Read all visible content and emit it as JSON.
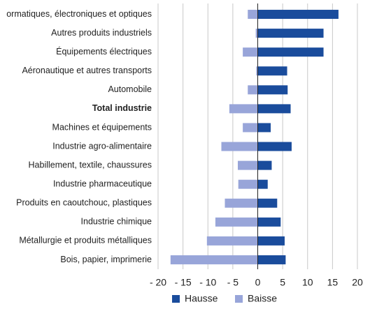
{
  "chart_data": {
    "type": "bar",
    "orientation": "horizontal",
    "stacked": true,
    "categories": [
      "ormatiques, électroniques et optiques",
      "Autres produits industriels",
      "Équipements électriques",
      "Aéronautique et autres transports",
      "Automobile",
      "Total industrie",
      "Machines et équipements",
      "Industrie agro-alimentaire",
      "Habillement, textile, chaussures",
      "Industrie pharmaceutique",
      "Produits en caoutchouc, plastiques",
      "Industrie chimique",
      "Métallurgie et produits métalliques",
      "Bois, papier, imprimerie"
    ],
    "bold_categories": [
      5
    ],
    "series": [
      {
        "name": "Hausse",
        "color": "#1a4c9c",
        "values": [
          16.2,
          13.2,
          13.2,
          5.9,
          6.0,
          6.6,
          2.6,
          6.8,
          2.8,
          2.0,
          3.9,
          4.6,
          5.4,
          5.6
        ]
      },
      {
        "name": "Baisse",
        "color": "#98a5d9",
        "values": [
          -2.0,
          -0.4,
          -3.0,
          -0.3,
          -2.0,
          -5.7,
          -3.0,
          -7.3,
          -4.0,
          -3.9,
          -6.6,
          -8.5,
          -10.2,
          -17.5
        ]
      }
    ],
    "xlim": [
      -20,
      20
    ],
    "xticks": [
      {
        "value": -20,
        "label": "- 20"
      },
      {
        "value": -15,
        "label": "- 15"
      },
      {
        "value": -10,
        "label": "- 10"
      },
      {
        "value": -5,
        "label": "- 5"
      },
      0,
      5,
      10,
      15,
      20
    ],
    "grid": true,
    "legend": "bottom"
  }
}
